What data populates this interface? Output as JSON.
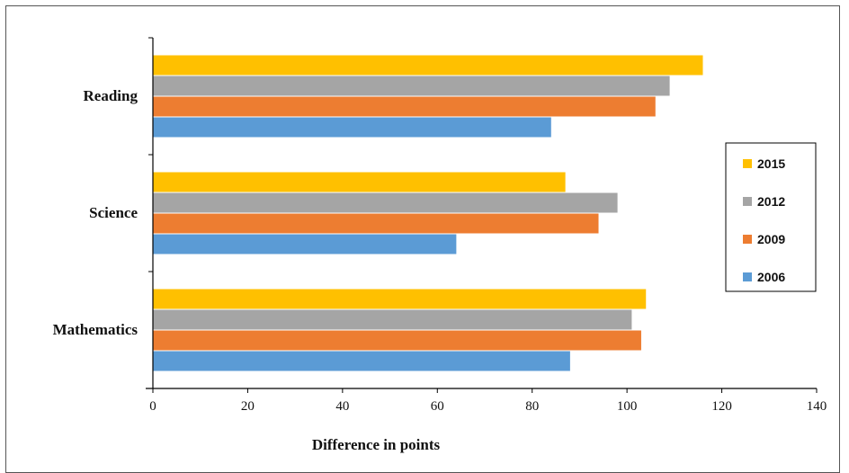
{
  "chart_data": {
    "type": "bar",
    "orientation": "horizontal",
    "title": "",
    "xlabel": "Difference in points",
    "ylabel": "",
    "xlim": [
      0,
      140
    ],
    "xticks": [
      "0",
      "20",
      "40",
      "60",
      "80",
      "100",
      "120",
      "140"
    ],
    "categories": [
      "Reading",
      "Science",
      "Mathematics"
    ],
    "series": [
      {
        "name": "2015",
        "color": "#FFC000",
        "values": [
          116,
          87,
          104
        ]
      },
      {
        "name": "2012",
        "color": "#A5A5A5",
        "values": [
          109,
          98,
          101
        ]
      },
      {
        "name": "2009",
        "color": "#ED7D31",
        "values": [
          106,
          94,
          103
        ]
      },
      {
        "name": "2006",
        "color": "#5B9BD5",
        "values": [
          84,
          64,
          88
        ]
      }
    ],
    "legend_position": "right",
    "grid": false
  }
}
